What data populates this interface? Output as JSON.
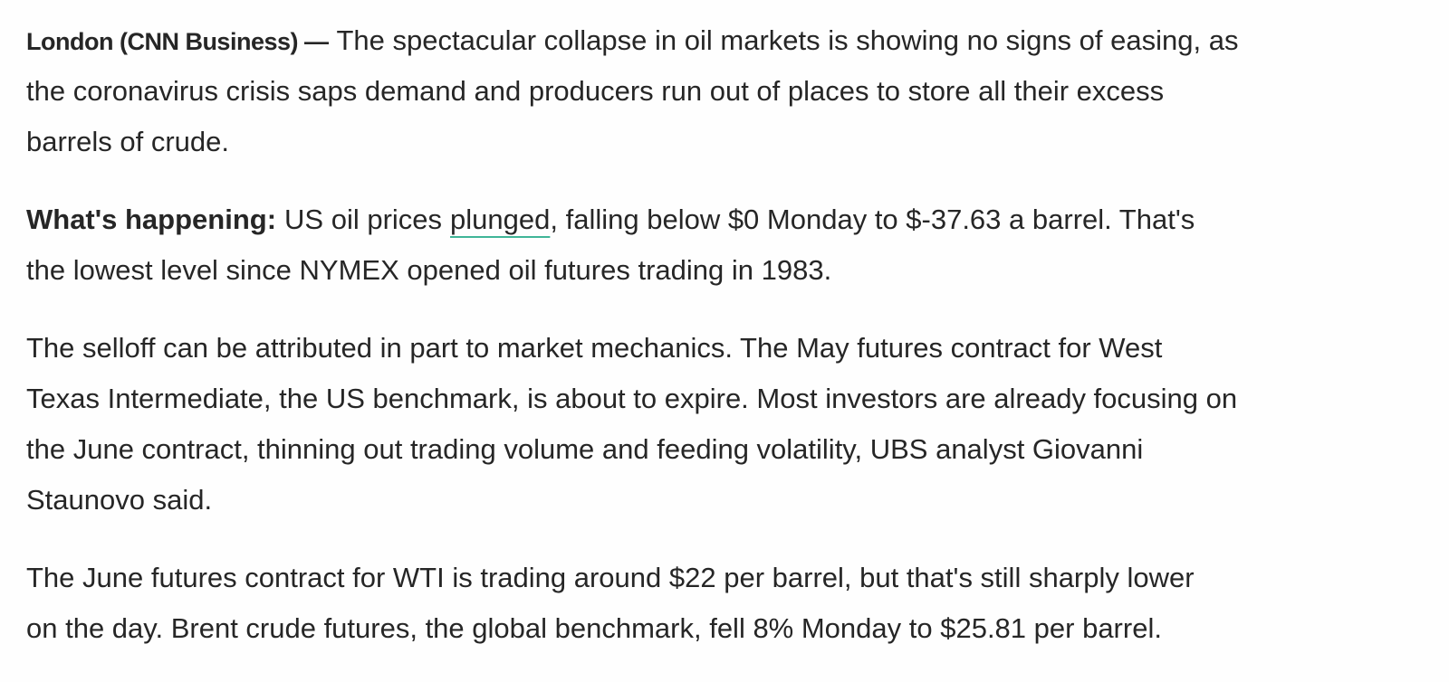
{
  "article": {
    "paragraphs": [
      {
        "lines": [
          [
            {
              "text": "London (CNN Business) —",
              "style": "lead"
            },
            {
              "text": "The spectacular collapse in oil markets is showing no signs of easing, as"
            }
          ],
          [
            {
              "text": "the coronavirus crisis saps demand and producers run out of places to store all their excess"
            }
          ],
          [
            {
              "text": "barrels of crude."
            }
          ]
        ]
      },
      {
        "lines": [
          [
            {
              "text": "What's happening:",
              "style": "bold"
            },
            {
              "text": "US oil prices"
            },
            {
              "text": "plunged",
              "style": "link"
            },
            {
              "text": ", falling below $0 Monday to $-37.63 a barrel. That's",
              "style": "tight"
            }
          ],
          [
            {
              "text": "the lowest level since NYMEX opened oil futures trading in 1983."
            }
          ]
        ]
      },
      {
        "lines": [
          [
            {
              "text": "The selloff can be attributed in part to market mechanics. The May futures contract for West"
            }
          ],
          [
            {
              "text": "Texas Intermediate, the US benchmark, is about to expire. Most investors are already focusing on"
            }
          ],
          [
            {
              "text": "the June contract, thinning out trading volume and feeding volatility, UBS analyst Giovanni"
            }
          ],
          [
            {
              "text": "Staunovo said."
            }
          ]
        ]
      },
      {
        "lines": [
          [
            {
              "text": "The June futures contract for WTI is trading around $22 per barrel, but that's still sharply lower"
            }
          ],
          [
            {
              "text": "on the day. Brent crude futures, the global benchmark, fell 8% Monday to $25.81 per barrel."
            }
          ]
        ]
      }
    ]
  }
}
